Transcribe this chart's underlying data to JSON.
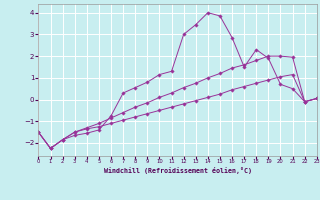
{
  "xlabel": "Windchill (Refroidissement éolien,°C)",
  "bg_color": "#c8eef0",
  "grid_color": "#ffffff",
  "line_color": "#993399",
  "xlim": [
    0,
    23
  ],
  "ylim": [
    -2.6,
    4.4
  ],
  "yticks": [
    -2,
    -1,
    0,
    1,
    2,
    3,
    4
  ],
  "xticks": [
    0,
    1,
    2,
    3,
    4,
    5,
    6,
    7,
    8,
    9,
    10,
    11,
    12,
    13,
    14,
    15,
    16,
    17,
    18,
    19,
    20,
    21,
    22,
    23
  ],
  "lines": [
    {
      "x": [
        0,
        1,
        2,
        3,
        4,
        5,
        6,
        7,
        8,
        9,
        10,
        11,
        12,
        13,
        14,
        15,
        16,
        17,
        18,
        19,
        20,
        21,
        22,
        23
      ],
      "y": [
        -1.5,
        -2.25,
        -1.85,
        -1.65,
        -1.55,
        -1.4,
        -0.75,
        0.3,
        0.55,
        0.8,
        1.15,
        1.3,
        3.0,
        3.45,
        4.0,
        3.85,
        2.85,
        1.5,
        2.3,
        1.9,
        0.7,
        0.5,
        -0.1,
        0.05
      ]
    },
    {
      "x": [
        0,
        1,
        2,
        3,
        4,
        5,
        6,
        7,
        8,
        9,
        10,
        11,
        12,
        13,
        14,
        15,
        16,
        17,
        18,
        19,
        20,
        21,
        22,
        23
      ],
      "y": [
        -1.5,
        -2.25,
        -1.85,
        -1.5,
        -1.3,
        -1.1,
        -0.85,
        -0.6,
        -0.35,
        -0.15,
        0.1,
        0.3,
        0.55,
        0.75,
        1.0,
        1.2,
        1.45,
        1.6,
        1.8,
        2.0,
        2.0,
        1.95,
        -0.1,
        0.05
      ]
    },
    {
      "x": [
        0,
        1,
        2,
        3,
        4,
        5,
        6,
        7,
        8,
        9,
        10,
        11,
        12,
        13,
        14,
        15,
        16,
        17,
        18,
        19,
        20,
        21,
        22,
        23
      ],
      "y": [
        -1.5,
        -2.25,
        -1.85,
        -1.5,
        -1.35,
        -1.25,
        -1.1,
        -0.95,
        -0.8,
        -0.65,
        -0.5,
        -0.35,
        -0.2,
        -0.05,
        0.1,
        0.25,
        0.45,
        0.6,
        0.75,
        0.9,
        1.05,
        1.15,
        -0.1,
        0.05
      ]
    }
  ]
}
